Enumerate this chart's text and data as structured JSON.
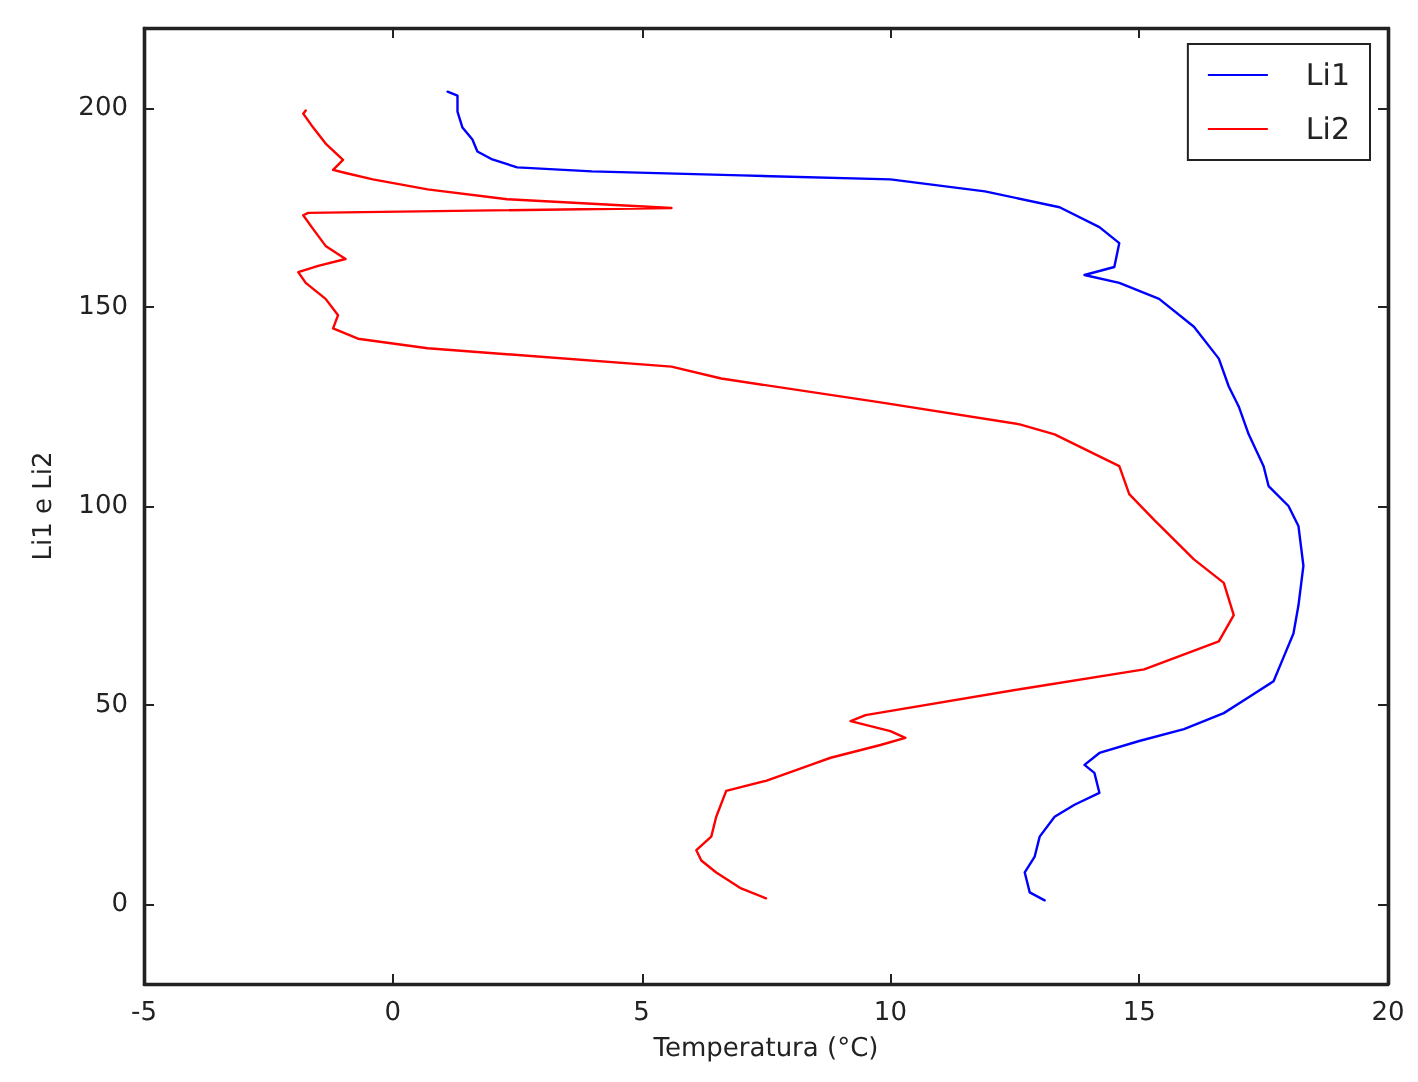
{
  "chart_data": {
    "type": "line",
    "xlabel": "Temperatura (°C)",
    "ylabel": "Li1 e Li2",
    "xlim": [
      -5,
      20
    ],
    "xticks": [
      -5,
      0,
      5,
      10,
      15,
      20
    ],
    "ylim": [
      -20,
      220
    ],
    "yticks": [
      0,
      50,
      100,
      150,
      200
    ],
    "grid": false,
    "legend": "top right",
    "marker": "none",
    "line_style": "solid",
    "series": [
      {
        "name": "Li1",
        "color": "#0000ff",
        "x": [
          13.1,
          12.8,
          12.7,
          12.9,
          13.0,
          13.3,
          13.7,
          14.2,
          14.1,
          13.9,
          14.2,
          15.0,
          15.9,
          16.7,
          17.2,
          17.7,
          17.9,
          18.1,
          18.2,
          18.3,
          18.2,
          18.0,
          17.6,
          17.5,
          17.2,
          17.0,
          16.8,
          16.6,
          16.1,
          15.4,
          14.6,
          13.9,
          14.5,
          14.6,
          14.2,
          13.4,
          11.9,
          10.0,
          7.0,
          4.0,
          2.5,
          2.0,
          1.7,
          1.6,
          1.4,
          1.3,
          1.3,
          1.1
        ],
        "values": [
          1,
          3,
          8,
          12,
          17,
          22,
          25,
          28,
          33,
          35,
          38,
          41,
          44,
          48,
          52,
          56,
          62,
          68,
          75,
          85,
          95,
          100,
          105,
          110,
          118,
          125,
          130,
          137,
          145,
          152,
          156,
          158,
          160,
          166,
          170,
          175,
          179,
          182,
          183,
          184,
          185,
          187,
          189,
          192,
          195,
          199,
          203,
          204
        ]
      },
      {
        "name": "Li2",
        "color": "#ff0000",
        "x": [
          7.5,
          7.0,
          6.5,
          6.2,
          6.1,
          6.4,
          6.5,
          6.7,
          7.5,
          8.8,
          9.8,
          10.3,
          10.0,
          9.2,
          9.5,
          12.6,
          15.1,
          16.6,
          16.9,
          16.7,
          16.1,
          15.3,
          14.8,
          14.6,
          13.3,
          12.6,
          9.8,
          6.6,
          5.6,
          0.7,
          -0.7,
          -1.2,
          -1.1,
          -1.35,
          -1.75,
          -1.9,
          -1.5,
          -0.95,
          -1.35,
          -1.6,
          -1.8,
          -1.7,
          5.6,
          2.3,
          0.7,
          -0.4,
          -0.95,
          -1.2,
          -1.0,
          -1.35,
          -1.6,
          -1.8,
          -1.75
        ],
        "values": [
          1.5,
          4,
          8,
          11,
          13.6,
          17,
          22,
          28.5,
          31,
          36.8,
          40,
          41.8,
          43.5,
          46,
          47.5,
          54,
          59,
          66,
          72.6,
          80.7,
          86.6,
          96.5,
          103,
          110,
          118,
          120.5,
          126,
          132,
          135,
          139.6,
          142,
          144.6,
          147.9,
          152,
          156,
          158.7,
          160.3,
          162,
          165.3,
          169.5,
          173,
          173.6,
          174.8,
          177,
          179.5,
          182,
          183.6,
          184.4,
          186.9,
          191,
          195,
          198.5,
          199.3
        ]
      }
    ]
  }
}
